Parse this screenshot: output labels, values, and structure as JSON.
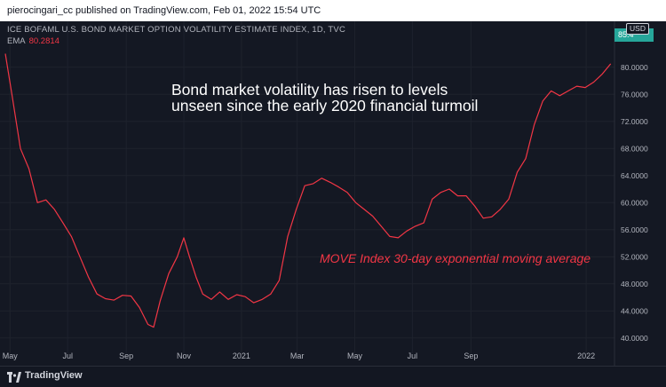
{
  "header": {
    "publish_line": "pierocingari_cc published on TradingView.com, Feb 01, 2022 15:54 UTC"
  },
  "legend": {
    "title": "ICE BOFAML U.S. BOND MARKET OPTION VOLATILITY ESTIMATE INDEX, 1D, TVC",
    "ema_label": "EMA",
    "ema_value": "80.2814"
  },
  "price_scale": {
    "currency": "USD",
    "last_value_tag": "85.4"
  },
  "annotations": {
    "headline_line1": "Bond market volatility has risen to levels",
    "headline_line2": "unseen since the early 2020 financial turmoil",
    "series_note": "MOVE Index 30-day exponential moving average"
  },
  "footer": {
    "brand": "TradingView",
    "logo_icon": "tradingview-logo-icon"
  },
  "colors": {
    "background": "#131722",
    "line": "#f23645",
    "grid": "#1e222d",
    "axis_text": "#b2b5be",
    "last_value_tag": "#26a69a"
  },
  "chart_data": {
    "type": "line",
    "xlabel": "",
    "ylabel": "",
    "ylim": [
      38.0,
      86.0
    ],
    "y_ticks": [
      40,
      44,
      48,
      52,
      56,
      60,
      64,
      68,
      72,
      76,
      80
    ],
    "y_tick_labels": [
      "40.0000",
      "44.0000",
      "48.0000",
      "52.0000",
      "56.0000",
      "60.0000",
      "64.0000",
      "68.0000",
      "72.0000",
      "76.0000",
      "80.0000"
    ],
    "x_range": [
      "2020-04-26",
      "2022-01-31"
    ],
    "x_ticks": [
      {
        "label": "May",
        "date": "2020-05-01"
      },
      {
        "label": "Jul",
        "date": "2020-07-01"
      },
      {
        "label": "Sep",
        "date": "2020-09-01"
      },
      {
        "label": "Nov",
        "date": "2020-11-01"
      },
      {
        "label": "2021",
        "date": "2021-01-01"
      },
      {
        "label": "Mar",
        "date": "2021-03-01"
      },
      {
        "label": "May",
        "date": "2021-05-01"
      },
      {
        "label": "Jul",
        "date": "2021-07-01"
      },
      {
        "label": "Sep",
        "date": "2021-09-01"
      },
      {
        "label": "2022",
        "date": "2022-01-01"
      }
    ],
    "grid": true,
    "series": [
      {
        "name": "EMA",
        "points": [
          [
            "2020-04-26",
            82.0
          ],
          [
            "2020-05-03",
            76.0
          ],
          [
            "2020-05-12",
            68.0
          ],
          [
            "2020-05-21",
            65.0
          ],
          [
            "2020-05-30",
            60.0
          ],
          [
            "2020-06-08",
            60.4
          ],
          [
            "2020-06-17",
            59.0
          ],
          [
            "2020-06-26",
            57.0
          ],
          [
            "2020-07-05",
            55.0
          ],
          [
            "2020-07-14",
            52.0
          ],
          [
            "2020-07-23",
            49.0
          ],
          [
            "2020-08-01",
            46.5
          ],
          [
            "2020-08-10",
            45.8
          ],
          [
            "2020-08-19",
            45.6
          ],
          [
            "2020-08-28",
            46.3
          ],
          [
            "2020-09-06",
            46.2
          ],
          [
            "2020-09-15",
            44.5
          ],
          [
            "2020-09-24",
            42.0
          ],
          [
            "2020-09-30",
            41.6
          ],
          [
            "2020-10-07",
            45.5
          ],
          [
            "2020-10-16",
            49.5
          ],
          [
            "2020-10-25",
            52.0
          ],
          [
            "2020-11-01",
            54.8
          ],
          [
            "2020-11-07",
            52.0
          ],
          [
            "2020-11-14",
            49.0
          ],
          [
            "2020-11-21",
            46.5
          ],
          [
            "2020-11-30",
            45.7
          ],
          [
            "2020-12-09",
            46.8
          ],
          [
            "2020-12-18",
            45.7
          ],
          [
            "2020-12-27",
            46.4
          ],
          [
            "2021-01-05",
            46.1
          ],
          [
            "2021-01-14",
            45.2
          ],
          [
            "2021-01-23",
            45.7
          ],
          [
            "2021-02-01",
            46.5
          ],
          [
            "2021-02-10",
            48.5
          ],
          [
            "2021-02-19",
            55.0
          ],
          [
            "2021-02-28",
            59.0
          ],
          [
            "2021-03-09",
            62.5
          ],
          [
            "2021-03-18",
            62.8
          ],
          [
            "2021-03-27",
            63.6
          ],
          [
            "2021-04-05",
            63.0
          ],
          [
            "2021-04-14",
            62.3
          ],
          [
            "2021-04-23",
            61.5
          ],
          [
            "2021-05-02",
            60.0
          ],
          [
            "2021-05-11",
            59.0
          ],
          [
            "2021-05-20",
            58.0
          ],
          [
            "2021-05-29",
            56.5
          ],
          [
            "2021-06-07",
            55.0
          ],
          [
            "2021-06-16",
            54.8
          ],
          [
            "2021-06-25",
            55.8
          ],
          [
            "2021-07-04",
            56.5
          ],
          [
            "2021-07-13",
            57.0
          ],
          [
            "2021-07-22",
            60.5
          ],
          [
            "2021-07-31",
            61.5
          ],
          [
            "2021-08-09",
            62.0
          ],
          [
            "2021-08-18",
            61.0
          ],
          [
            "2021-08-27",
            61.0
          ],
          [
            "2021-09-05",
            59.5
          ],
          [
            "2021-09-14",
            57.7
          ],
          [
            "2021-09-23",
            57.9
          ],
          [
            "2021-10-02",
            59.0
          ],
          [
            "2021-10-11",
            60.5
          ],
          [
            "2021-10-20",
            64.5
          ],
          [
            "2021-10-29",
            66.5
          ],
          [
            "2021-11-07",
            71.5
          ],
          [
            "2021-11-16",
            75.0
          ],
          [
            "2021-11-25",
            76.5
          ],
          [
            "2021-12-04",
            75.8
          ],
          [
            "2021-12-13",
            76.5
          ],
          [
            "2021-12-22",
            77.2
          ],
          [
            "2021-12-31",
            77.0
          ],
          [
            "2022-01-09",
            77.8
          ],
          [
            "2022-01-18",
            79.0
          ],
          [
            "2022-01-27",
            80.5
          ]
        ]
      }
    ]
  }
}
